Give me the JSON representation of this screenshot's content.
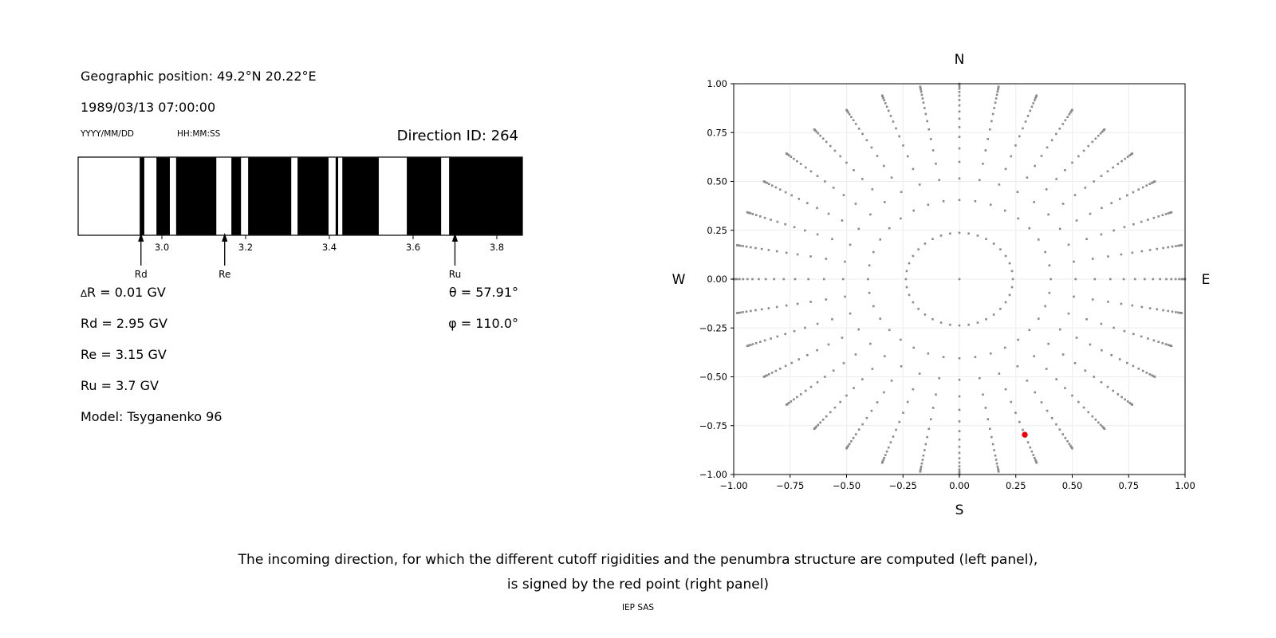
{
  "header": {
    "geo_position": "Geographic position: 49.2°N 20.22°E",
    "datetime": "1989/03/13 07:00:00",
    "date_format_label": "YYYY/MM/DD",
    "time_format_label": "HH:MM:SS",
    "direction_id": "Direction ID: 264"
  },
  "values": {
    "delta_symbol": "∆",
    "delta_rest": "R = 0.01 GV",
    "rd": "Rd = 2.95 GV",
    "re": "Re = 3.15 GV",
    "ru": "Ru = 3.7 GV",
    "model": "Model: Tsyganenko 96",
    "theta": "θ = 57.91°",
    "phi": "φ = 110.0°"
  },
  "caption": {
    "line1": "The incoming direction, for which the different cutoff rigidities and the penumbra structure are computed (left panel),",
    "line2": "is signed by the red point (right panel)",
    "credit": "IEP SAS"
  },
  "chart_data": [
    {
      "type": "bar",
      "name": "penumbra-barcode",
      "description": "Penumbra structure: black = allowed rigidity bands, white = forbidden, step 0.01 GV",
      "x_range": [
        2.8,
        3.861
      ],
      "x_ticks": [
        3.0,
        3.2,
        3.4,
        3.6,
        3.8
      ],
      "allowed_intervals_gv": [
        [
          2.947,
          2.958
        ],
        [
          2.987,
          3.019
        ],
        [
          3.034,
          3.13
        ],
        [
          3.166,
          3.189
        ],
        [
          3.206,
          3.309
        ],
        [
          3.324,
          3.398
        ],
        [
          3.415,
          3.421
        ],
        [
          3.431,
          3.518
        ],
        [
          3.585,
          3.667
        ],
        [
          3.686,
          3.861
        ]
      ],
      "arrows": [
        {
          "label": "Rd",
          "value": 2.95
        },
        {
          "label": "Re",
          "value": 3.15
        },
        {
          "label": "Ru",
          "value": 3.7
        }
      ],
      "colors": {
        "allowed": "#000000",
        "forbidden": "#ffffff",
        "frame": "#000000"
      }
    },
    {
      "type": "scatter",
      "name": "direction-map",
      "title": "N",
      "bottom_label": "S",
      "left_label": "W",
      "right_label": "E",
      "xlim": [
        -1.0,
        1.0
      ],
      "ylim": [
        -1.0,
        1.0
      ],
      "x_ticks": [
        -1.0,
        -0.75,
        -0.5,
        -0.25,
        0.0,
        0.25,
        0.5,
        0.75,
        1.0
      ],
      "y_ticks": [
        -1.0,
        -0.75,
        -0.5,
        -0.25,
        0.0,
        0.25,
        0.5,
        0.75,
        1.0
      ],
      "grid": true,
      "azimuth_start_deg": 0,
      "azimuth_step_deg": 10,
      "azimuth_count": 36,
      "ring_radii": [
        0.237,
        0.405,
        0.515,
        0.6,
        0.669,
        0.728,
        0.778,
        0.821,
        0.858,
        0.889,
        0.917,
        0.939,
        0.958,
        0.974,
        0.985,
        0.993,
        0.998,
        1.0
      ],
      "center_dot": true,
      "red_point": {
        "x": 0.2898,
        "y": -0.7962,
        "theta_deg": 57.91,
        "phi_deg": 110.0
      },
      "dot_color": "#8a8a8a",
      "red_color": "#e8000d",
      "grid_color": "#ededed",
      "frame_color": "#000000"
    }
  ]
}
